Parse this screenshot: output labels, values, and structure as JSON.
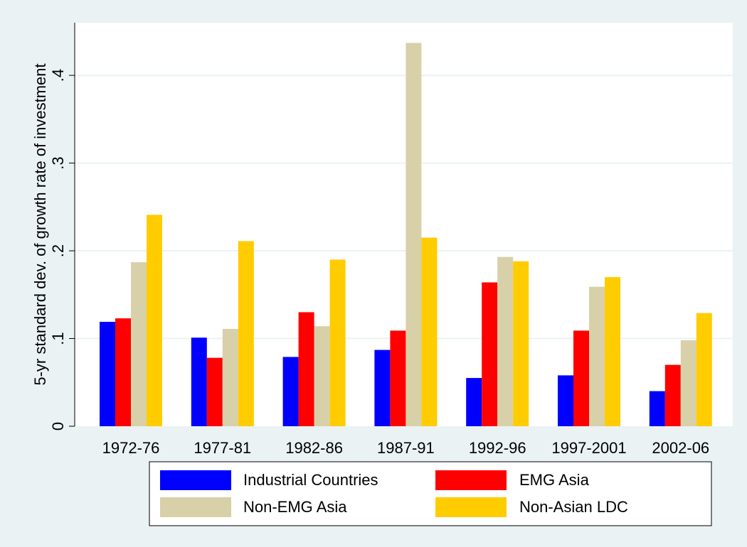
{
  "chart_data": {
    "type": "bar",
    "y_label": "5-yr standard dev. of growth rate of investment",
    "categories": [
      "1972-76",
      "1977-81",
      "1982-86",
      "1987-91",
      "1992-96",
      "1997-2001",
      "2002-06"
    ],
    "series": [
      {
        "name": "Industrial Countries",
        "color": "#0000ff",
        "values": [
          0.119,
          0.101,
          0.079,
          0.087,
          0.055,
          0.058,
          0.04
        ]
      },
      {
        "name": "EMG Asia",
        "color": "#ff0000",
        "values": [
          0.123,
          0.078,
          0.13,
          0.109,
          0.164,
          0.109,
          0.07
        ]
      },
      {
        "name": "Non-EMG Asia",
        "color": "#d8d0a8",
        "values": [
          0.187,
          0.111,
          0.114,
          0.437,
          0.193,
          0.159,
          0.098
        ]
      },
      {
        "name": "Non-Asian LDC",
        "color": "#ffcc00",
        "values": [
          0.241,
          0.211,
          0.19,
          0.215,
          0.188,
          0.17,
          0.129
        ]
      }
    ],
    "ylim": [
      0,
      0.46
    ],
    "yticks": [
      0,
      {
        "value": 0.1,
        "label": ".1"
      },
      {
        "value": 0.2,
        "label": ".2"
      },
      {
        "value": 0.3,
        "label": ".3"
      },
      {
        "value": 0.4,
        "label": ".4"
      }
    ],
    "grid": true,
    "legend": "bottom"
  }
}
